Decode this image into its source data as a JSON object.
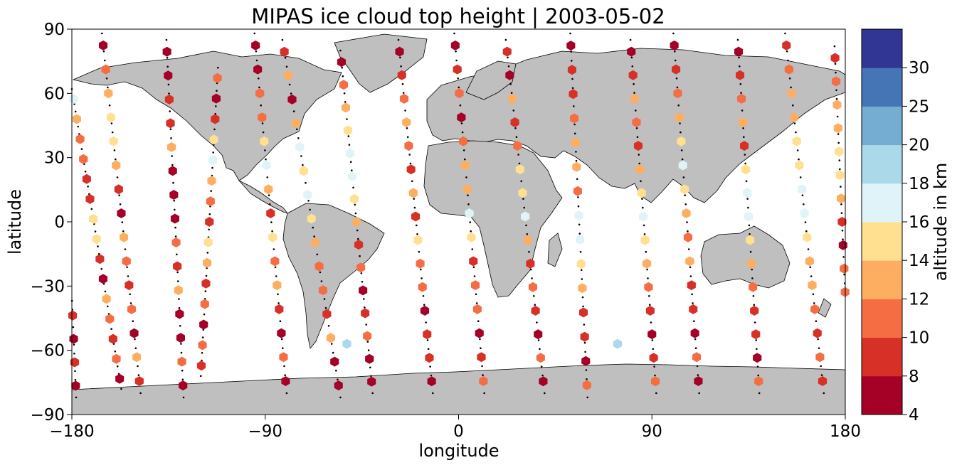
{
  "chart_data": {
    "type": "scatter",
    "title": "MIPAS ice cloud top height | 2003-05-02",
    "xlabel": "longitude",
    "ylabel": "latitude",
    "xlim": [
      -180,
      180
    ],
    "ylim": [
      -90,
      90
    ],
    "xticks": [
      -180,
      -90,
      0,
      90,
      180
    ],
    "xtick_labels": [
      "−180",
      "−90",
      "0",
      "90",
      "180"
    ],
    "yticks": [
      -90,
      -60,
      -30,
      0,
      30,
      60,
      90
    ],
    "ytick_labels": [
      "−90",
      "−60",
      "−30",
      "0",
      "30",
      "60",
      "90"
    ],
    "grid": false,
    "background_map": "world coastlines, land shaded grey",
    "colorbar": {
      "label": "altitude in km",
      "boundaries": [
        4,
        8,
        10,
        12,
        14,
        16,
        18,
        20,
        25,
        30
      ],
      "tick_labels": [
        "4",
        "8",
        "10",
        "12",
        "14",
        "16",
        "18",
        "20",
        "25",
        "30"
      ],
      "colors": [
        "#a50026",
        "#d73027",
        "#f46d43",
        "#fdae61",
        "#fee090",
        "#e0f3f8",
        "#abd9e9",
        "#74add1",
        "#4575b4",
        "#313695"
      ]
    },
    "colors": {
      "land": "#bfbfbf",
      "coast": "#000000",
      "track": "#000000"
    },
    "tracks": [
      {
        "start": [
          -180,
          62
        ],
        "end": [
          -157,
          -78
        ],
        "heights": [
          16,
          13,
          11,
          10,
          9,
          8,
          14,
          15,
          9,
          7,
          12,
          10,
          8,
          11,
          7
        ]
      },
      {
        "start": [
          -166,
          88
        ],
        "end": [
          -148,
          -80
        ],
        "heights": [
          7,
          11,
          13,
          14,
          15,
          12,
          9,
          7,
          13,
          10,
          8,
          11,
          6,
          12,
          9
        ]
      },
      {
        "start": [
          -136,
          85
        ],
        "end": [
          -128,
          -82
        ],
        "heights": [
          6,
          7,
          9,
          8,
          12,
          6,
          7,
          5,
          10,
          9,
          12,
          7,
          6,
          11,
          7
        ]
      },
      {
        "start": [
          -112,
          72
        ],
        "end": [
          -120,
          -72
        ],
        "heights": [
          11,
          7,
          9,
          14,
          17,
          13,
          11,
          9,
          14,
          12,
          8,
          10,
          7,
          11,
          9
        ]
      },
      {
        "start": [
          -95,
          88
        ],
        "end": [
          -80,
          -80
        ],
        "heights": [
          7,
          6,
          11,
          10,
          14,
          17,
          12,
          9,
          15,
          11,
          12,
          8,
          6,
          10,
          7
        ]
      },
      {
        "start": [
          -82,
          85
        ],
        "end": [
          -55,
          -82
        ],
        "heights": [
          9,
          12,
          7,
          13,
          16,
          15,
          17,
          14,
          13,
          11,
          10,
          9,
          12,
          7,
          6
        ]
      },
      {
        "start": [
          -55,
          80
        ],
        "end": [
          -40,
          -80
        ],
        "heights": [
          7,
          10,
          12,
          14,
          17,
          16,
          15,
          12,
          9,
          11,
          7,
          8,
          10,
          6,
          7
        ]
      },
      {
        "start": [
          -28,
          85
        ],
        "end": [
          -12,
          -80
        ],
        "heights": [
          7,
          9,
          11,
          13,
          10,
          8,
          12,
          9,
          14,
          11,
          10,
          7,
          8,
          9,
          6
        ]
      },
      {
        "start": [
          -2,
          88
        ],
        "end": [
          12,
          -80
        ],
        "heights": [
          6,
          9,
          11,
          7,
          10,
          12,
          13,
          16,
          14,
          9,
          11,
          10,
          7,
          8,
          11
        ]
      },
      {
        "start": [
          22,
          85
        ],
        "end": [
          40,
          -80
        ],
        "heights": [
          8,
          7,
          12,
          9,
          10,
          14,
          15,
          16,
          12,
          9,
          11,
          8,
          6,
          10,
          7
        ]
      },
      {
        "start": [
          52,
          88
        ],
        "end": [
          60,
          -82
        ],
        "heights": [
          7,
          8,
          9,
          10,
          12,
          13,
          11,
          16,
          17,
          14,
          12,
          9,
          8,
          7,
          10
        ]
      },
      {
        "start": [
          80,
          85
        ],
        "end": [
          92,
          -80
        ],
        "heights": [
          6,
          9,
          12,
          10,
          8,
          13,
          15,
          17,
          14,
          12,
          11,
          9,
          7,
          8,
          10
        ]
      },
      {
        "start": [
          100,
          88
        ],
        "end": [
          112,
          -80
        ],
        "heights": [
          7,
          9,
          11,
          13,
          14,
          16,
          15,
          13,
          11,
          12,
          9,
          8,
          7,
          10,
          6
        ]
      },
      {
        "start": [
          130,
          85
        ],
        "end": [
          140,
          -80
        ],
        "heights": [
          6,
          8,
          10,
          12,
          9,
          14,
          16,
          17,
          15,
          12,
          10,
          9,
          8,
          7,
          11
        ]
      },
      {
        "start": [
          152,
          88
        ],
        "end": [
          170,
          -80
        ],
        "heights": [
          9,
          11,
          12,
          13,
          14,
          15,
          16,
          17,
          14,
          12,
          13,
          11,
          9,
          10,
          8
        ]
      },
      {
        "start": [
          175,
          82
        ],
        "end": [
          -178,
          -82
        ],
        "heights": [
          8,
          10,
          12,
          13,
          15,
          14,
          12,
          9,
          7,
          11,
          10,
          8,
          6,
          9,
          7
        ]
      }
    ],
    "isolated_points": [
      {
        "lon": -52,
        "lat": -57,
        "height": 19
      },
      {
        "lon": 74,
        "lat": -57,
        "height": 19
      }
    ]
  }
}
